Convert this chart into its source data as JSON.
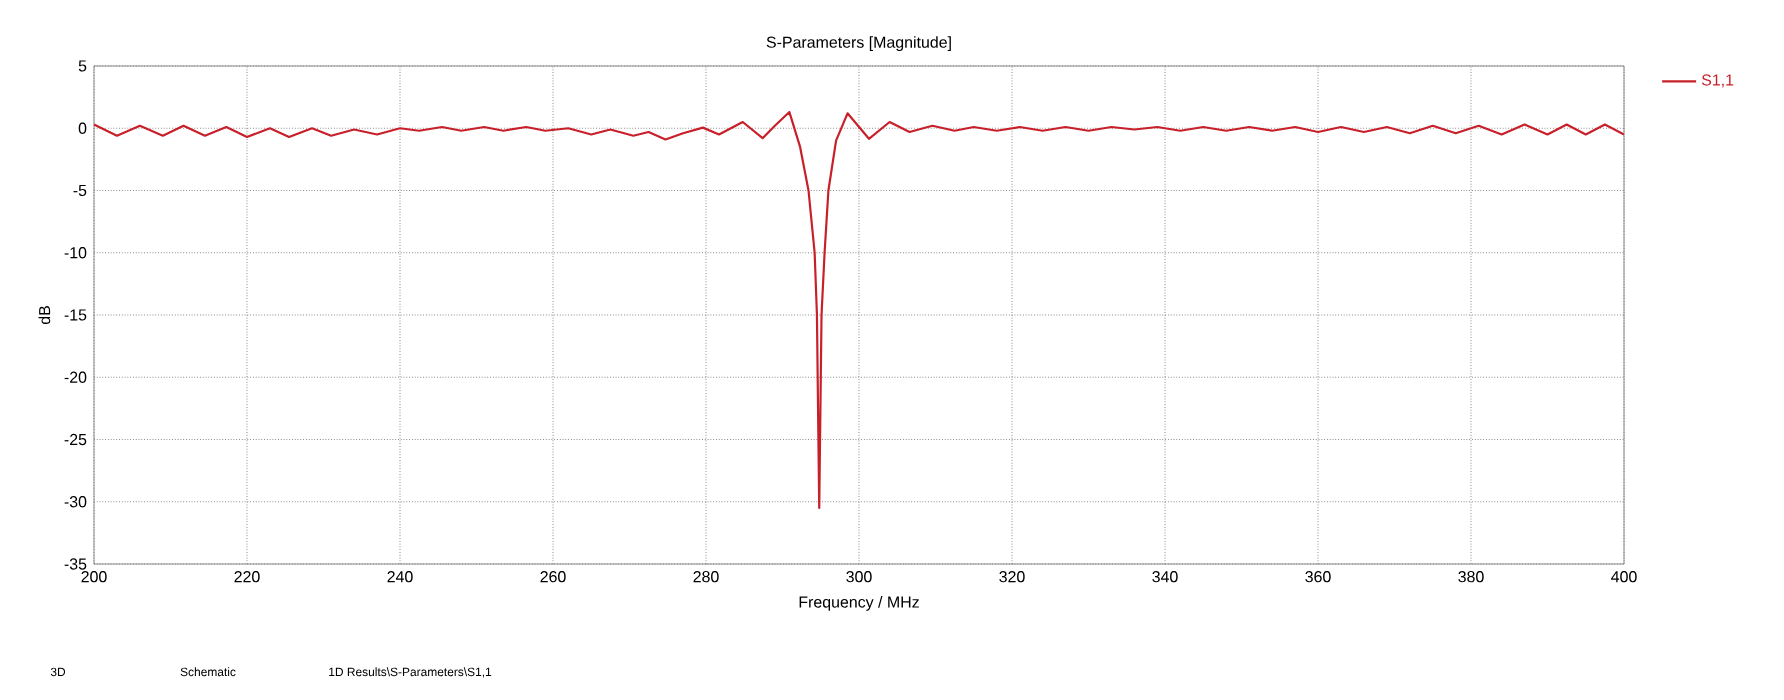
{
  "chart_data": {
    "type": "line",
    "title": "S-Parameters [Magnitude]",
    "xlabel": "Frequency / MHz",
    "ylabel": "dB",
    "xlim": [
      200,
      400
    ],
    "xticks": [
      200,
      220,
      240,
      260,
      280,
      300,
      320,
      340,
      360,
      380,
      400
    ],
    "ylim": [
      -35,
      5
    ],
    "yticks": [
      -35,
      -30,
      -25,
      -20,
      -15,
      -10,
      -5,
      0,
      5
    ],
    "grid": true,
    "legend": "top right",
    "line_style": "solid",
    "marker": "none",
    "annotations": [
      "3D",
      "Schematic",
      "1D Results\\S-Parameters\\S1,1"
    ],
    "series": [
      {
        "name": "S1,1",
        "color": "#c8202a",
        "x": [
          200,
          203,
          206,
          209,
          211.7,
          214.5,
          217.3,
          220,
          223,
          225.5,
          228.5,
          231,
          234,
          237,
          240,
          242.5,
          245.5,
          248,
          251,
          253.5,
          256.5,
          259,
          262,
          265,
          267.5,
          270.5,
          272.5,
          274.7,
          277,
          279.6,
          281.7,
          284.8,
          287.4,
          289,
          290.9,
          292.3,
          293.4,
          294.2,
          294.5,
          294.8,
          295.1,
          295.5,
          296,
          297,
          298.5,
          301.3,
          304,
          306.6,
          309.6,
          312.5,
          315,
          318,
          321,
          324,
          327,
          330,
          333,
          336,
          339,
          342,
          345,
          348,
          351,
          354,
          357,
          360,
          363,
          366,
          369,
          372,
          375,
          378,
          381,
          384,
          387,
          390,
          392.5,
          395,
          397.5,
          400
        ],
        "values": [
          0.3,
          -0.6,
          0.2,
          -0.6,
          0.2,
          -0.6,
          0.1,
          -0.7,
          0.0,
          -0.7,
          0.0,
          -0.6,
          -0.1,
          -0.5,
          0.0,
          -0.2,
          0.1,
          -0.2,
          0.1,
          -0.2,
          0.1,
          -0.2,
          0.0,
          -0.5,
          -0.1,
          -0.6,
          -0.3,
          -0.9,
          -0.4,
          0.05,
          -0.5,
          0.5,
          -0.8,
          0.2,
          1.3,
          -1.5,
          -5,
          -10,
          -15,
          -30.5,
          -15,
          -10,
          -5,
          -1,
          1.2,
          -0.85,
          0.5,
          -0.3,
          0.2,
          -0.2,
          0.1,
          -0.2,
          0.1,
          -0.2,
          0.1,
          -0.2,
          0.1,
          -0.1,
          0.1,
          -0.2,
          0.1,
          -0.2,
          0.1,
          -0.2,
          0.1,
          -0.3,
          0.1,
          -0.3,
          0.1,
          -0.4,
          0.2,
          -0.4,
          0.2,
          -0.5,
          0.3,
          -0.5,
          0.3,
          -0.5,
          0.3,
          -0.5
        ]
      }
    ]
  }
}
